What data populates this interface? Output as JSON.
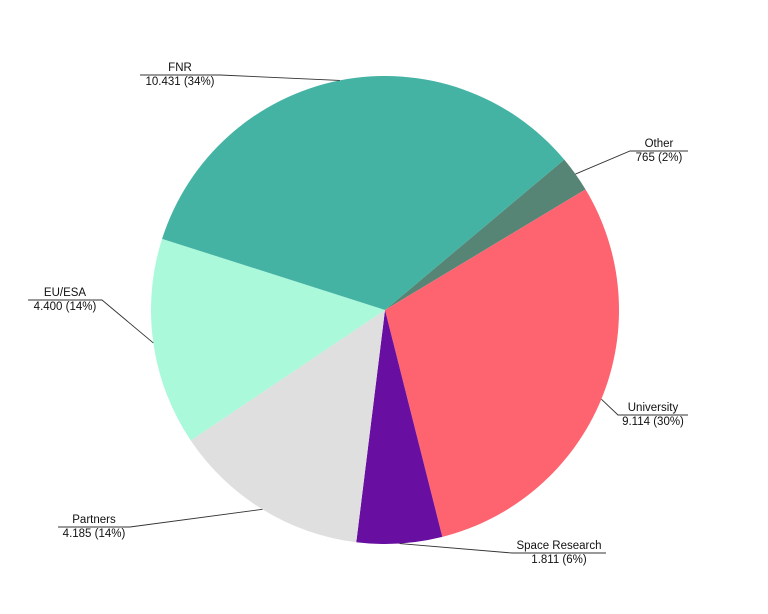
{
  "chart_data": {
    "type": "pie",
    "categories": [
      "Other",
      "University",
      "Space Research",
      "Partners",
      "EU/ESA",
      "FNR"
    ],
    "values": [
      765,
      9114,
      1811,
      4185,
      4400,
      10431
    ],
    "value_labels": [
      "765  (2%)",
      "9.114  (30%)",
      "1.811  (6%)",
      "4.185  (14%)",
      "4.400  (14%)",
      "10.431  (34%)"
    ],
    "colors": [
      "#568575",
      "#fe6370",
      "#680ea0",
      "#dfdfdf",
      "#aaf9da",
      "#44b3a4"
    ]
  }
}
